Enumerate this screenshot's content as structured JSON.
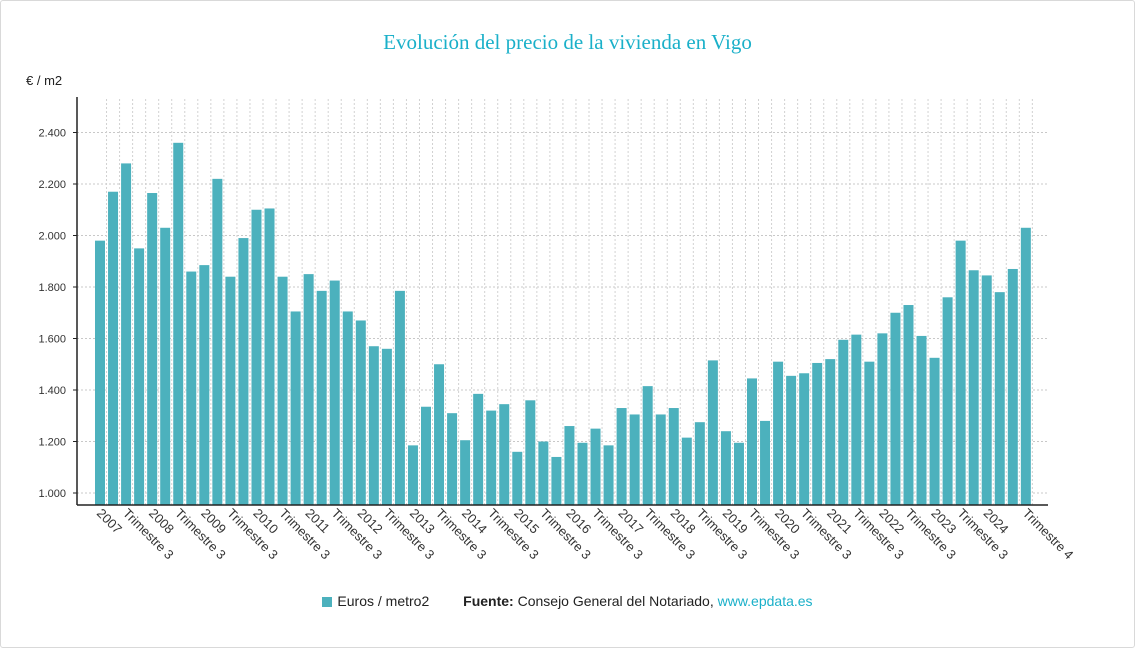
{
  "chart_data": {
    "type": "bar",
    "title": "Evolución del precio de la vivienda en Vigo",
    "ylabel": "€ / m2",
    "xlabel": "",
    "ylim": [
      1000,
      2450
    ],
    "yticks": [
      "1.000",
      "1.200",
      "1.400",
      "1.600",
      "1.800",
      "2.000",
      "2.200",
      "2.400"
    ],
    "ytick_values": [
      1000,
      1200,
      1400,
      1600,
      1800,
      2000,
      2200,
      2400
    ],
    "grid": true,
    "legend_position": "bottom",
    "bar_color": "#4cb1bd",
    "categories": [
      "2007 T1",
      "2007 T2",
      "2007 T3",
      "2007 T4",
      "2008 T1",
      "2008 T2",
      "2008 T3",
      "2008 T4",
      "2009 T1",
      "2009 T2",
      "2009 T3",
      "2009 T4",
      "2010 T1",
      "2010 T2",
      "2010 T3",
      "2010 T4",
      "2011 T1",
      "2011 T2",
      "2011 T3",
      "2011 T4",
      "2012 T1",
      "2012 T2",
      "2012 T3",
      "2012 T4",
      "2013 T1",
      "2013 T2",
      "2013 T3",
      "2013 T4",
      "2014 T1",
      "2014 T2",
      "2014 T3",
      "2014 T4",
      "2015 T1",
      "2015 T2",
      "2015 T3",
      "2015 T4",
      "2016 T1",
      "2016 T2",
      "2016 T3",
      "2016 T4",
      "2017 T1",
      "2017 T2",
      "2017 T3",
      "2017 T4",
      "2018 T1",
      "2018 T2",
      "2018 T3",
      "2018 T4",
      "2019 T1",
      "2019 T2",
      "2019 T3",
      "2019 T4",
      "2020 T1",
      "2020 T2",
      "2020 T3",
      "2020 T4",
      "2021 T1",
      "2021 T2",
      "2021 T3",
      "2021 T4",
      "2022 T1",
      "2022 T2",
      "2022 T3",
      "2022 T4",
      "2023 T1",
      "2023 T2",
      "2023 T3",
      "2023 T4",
      "2024 T1",
      "2024 T2",
      "2024 T3",
      "2024 T4"
    ],
    "tick_labels": [
      {
        "index": 0,
        "text": "2007"
      },
      {
        "index": 2,
        "text": "Trimestre 3"
      },
      {
        "index": 4,
        "text": "2008"
      },
      {
        "index": 6,
        "text": "Trimestre 3"
      },
      {
        "index": 8,
        "text": "2009"
      },
      {
        "index": 10,
        "text": "Trimestre 3"
      },
      {
        "index": 12,
        "text": "2010"
      },
      {
        "index": 14,
        "text": "Trimestre 3"
      },
      {
        "index": 16,
        "text": "2011"
      },
      {
        "index": 18,
        "text": "Trimestre 3"
      },
      {
        "index": 20,
        "text": "2012"
      },
      {
        "index": 22,
        "text": "Trimestre 3"
      },
      {
        "index": 24,
        "text": "2013"
      },
      {
        "index": 26,
        "text": "Trimestre 3"
      },
      {
        "index": 28,
        "text": "2014"
      },
      {
        "index": 30,
        "text": "Trimestre 3"
      },
      {
        "index": 32,
        "text": "2015"
      },
      {
        "index": 34,
        "text": "Trimestre 3"
      },
      {
        "index": 36,
        "text": "2016"
      },
      {
        "index": 38,
        "text": "Trimestre 3"
      },
      {
        "index": 40,
        "text": "2017"
      },
      {
        "index": 42,
        "text": "Trimestre 3"
      },
      {
        "index": 44,
        "text": "2018"
      },
      {
        "index": 46,
        "text": "Trimestre 3"
      },
      {
        "index": 48,
        "text": "2019"
      },
      {
        "index": 50,
        "text": "Trimestre 3"
      },
      {
        "index": 52,
        "text": "2020"
      },
      {
        "index": 54,
        "text": "Trimestre 3"
      },
      {
        "index": 56,
        "text": "2021"
      },
      {
        "index": 58,
        "text": "Trimestre 3"
      },
      {
        "index": 60,
        "text": "2022"
      },
      {
        "index": 62,
        "text": "Trimestre 3"
      },
      {
        "index": 64,
        "text": "2023"
      },
      {
        "index": 66,
        "text": "Trimestre 3"
      },
      {
        "index": 68,
        "text": "2024"
      },
      {
        "index": 71,
        "text": "Trimestre 4"
      }
    ],
    "series": [
      {
        "name": "Euros / metro2",
        "values": [
          1980,
          2170,
          2280,
          1950,
          2165,
          2030,
          2360,
          1860,
          1885,
          2220,
          1840,
          1990,
          2100,
          2105,
          1840,
          1705,
          1850,
          1785,
          1825,
          1705,
          1670,
          1570,
          1560,
          1785,
          1185,
          1335,
          1500,
          1310,
          1205,
          1385,
          1320,
          1345,
          1160,
          1360,
          1200,
          1140,
          1260,
          1195,
          1250,
          1185,
          1330,
          1305,
          1415,
          1305,
          1330,
          1215,
          1275,
          1515,
          1240,
          1195,
          1445,
          1280,
          1510,
          1455,
          1465,
          1505,
          1520,
          1595,
          1615,
          1510,
          1620,
          1700,
          1730,
          1610,
          1525,
          1760,
          1980,
          1865,
          1845,
          1780,
          1870,
          2030
        ]
      }
    ]
  },
  "legend": {
    "series_label": "Euros / metro2",
    "source_label": "Fuente:",
    "source_text": "Consejo General del Notariado,",
    "source_link": "www.epdata.es"
  }
}
